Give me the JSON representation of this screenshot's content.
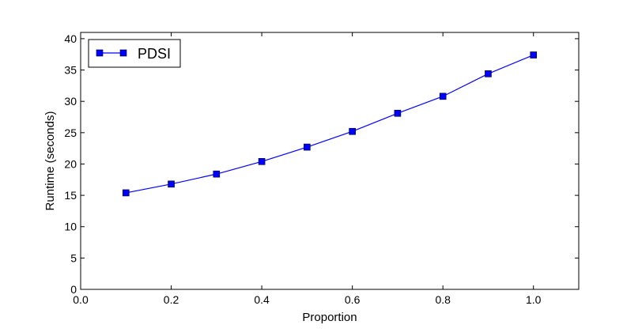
{
  "chart_data": {
    "type": "line",
    "title": "",
    "xlabel": "Proportion",
    "ylabel": "Runtime (seconds)",
    "xlim": [
      0.0,
      1.1
    ],
    "ylim": [
      0,
      41
    ],
    "x_ticks": [
      "0.0",
      "0.2",
      "0.4",
      "0.6",
      "0.8",
      "1.0"
    ],
    "y_ticks": [
      "0",
      "5",
      "10",
      "15",
      "20",
      "25",
      "30",
      "35",
      "40"
    ],
    "grid": false,
    "legend": {
      "placement": "top-left",
      "entries": [
        "PDSI"
      ]
    },
    "series": [
      {
        "name": "PDSI",
        "color": "#0000ff",
        "marker": "square",
        "x": [
          0.1,
          0.2,
          0.3,
          0.4,
          0.5,
          0.6,
          0.7,
          0.8,
          0.9,
          1.0
        ],
        "y": [
          15.4,
          16.8,
          18.4,
          20.4,
          22.7,
          25.2,
          28.1,
          30.8,
          34.4,
          37.4
        ]
      }
    ]
  }
}
